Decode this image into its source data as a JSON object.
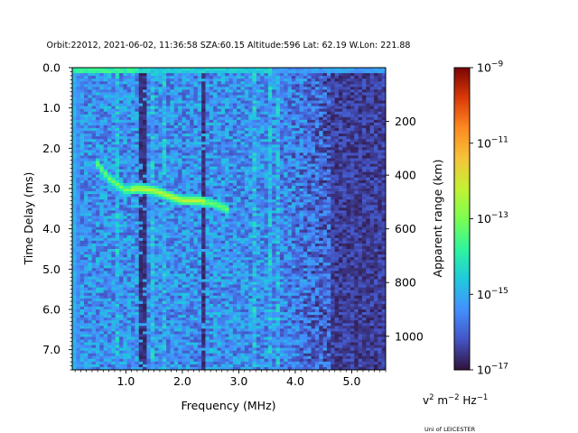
{
  "chart_data": {
    "type": "heatmap",
    "title": "Orbit:22012, 2021-06-02, 11:36:58 SZA:60.15 Altitude:596 Lat: 62.19 W.Lon: 221.88",
    "xlabel": "Frequency (MHz)",
    "ylabel": "Time Delay (ms)",
    "y2label": "Apparent range (km)",
    "xlim": [
      0.05,
      5.6
    ],
    "ylim": [
      7.5,
      0.0
    ],
    "y2lim": [
      0,
      1125
    ],
    "x_ticks": [
      1.0,
      2.0,
      3.0,
      4.0,
      5.0
    ],
    "x_tick_labels": [
      "1.0",
      "2.0",
      "3.0",
      "4.0",
      "5.0"
    ],
    "y_ticks": [
      0.0,
      1.0,
      2.0,
      3.0,
      4.0,
      5.0,
      6.0,
      7.0
    ],
    "y_tick_labels": [
      "0.0",
      "1.0",
      "2.0",
      "3.0",
      "4.0",
      "5.0",
      "6.0",
      "7.0"
    ],
    "y2_ticks": [
      200,
      400,
      600,
      800,
      1000
    ],
    "y2_tick_labels": [
      "200",
      "400",
      "600",
      "800",
      "1000"
    ],
    "colorbar": {
      "scale": "log",
      "range": [
        1e-17,
        1e-09
      ],
      "colormap": "turbo",
      "ticks": [
        {
          "exp": -9,
          "base": "10",
          "sup": "−9"
        },
        {
          "exp": -11,
          "base": "10",
          "sup": "−11"
        },
        {
          "exp": -13,
          "base": "10",
          "sup": "−13"
        },
        {
          "exp": -15,
          "base": "10",
          "sup": "−15"
        },
        {
          "exp": -17,
          "base": "10",
          "sup": "−17"
        }
      ],
      "unit_parts": [
        "v",
        "2",
        " m",
        "−2",
        " Hz",
        "−1"
      ]
    },
    "features": {
      "ground_echo_delay_ms": 0.1,
      "ionospheric_trace": {
        "freq_mhz": [
          0.45,
          0.7,
          1.0,
          1.2,
          1.5,
          1.8,
          2.0,
          2.3,
          2.6,
          2.85
        ],
        "delay_ms": [
          2.3,
          2.75,
          3.05,
          3.0,
          3.05,
          3.2,
          3.3,
          3.3,
          3.4,
          3.55
        ]
      },
      "vertical_lines_mhz": [
        1.3,
        2.35
      ]
    },
    "credit": "Uni of LEICESTER"
  }
}
